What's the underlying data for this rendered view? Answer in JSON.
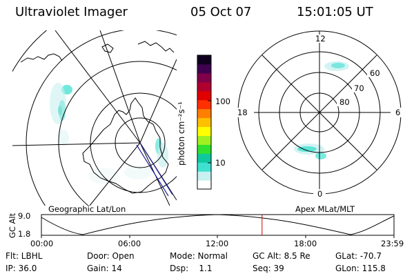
{
  "header": {
    "instrument": "Ultraviolet Imager",
    "date": "05 Oct 07",
    "time": "15:01:05 UT"
  },
  "left_panel": {
    "label": "Geographic Lat/Lon"
  },
  "right_panel": {
    "label": "Apex MLat/MLT",
    "mlt_labels": [
      "12",
      "6",
      "0",
      "18"
    ],
    "mlat_labels": [
      "60",
      "70",
      "80"
    ]
  },
  "colorbar": {
    "unit_label": "photon cm⁻²s⁻¹",
    "ticks": [
      "100",
      "10"
    ],
    "colors": [
      "#ffffff",
      "#c8f0f0",
      "#40e0d0",
      "#10c8a0",
      "#30e030",
      "#a0f020",
      "#ffff00",
      "#ffc000",
      "#ff8000",
      "#ff3000",
      "#e00000",
      "#b00030",
      "#80004a",
      "#400050",
      "#100020"
    ]
  },
  "altitude_plot": {
    "ylabel": "GC Alt",
    "yticks": [
      "9.0",
      "1.8"
    ],
    "xticks": [
      "00:00",
      "06:00",
      "12:00",
      "18:00",
      "23:59"
    ],
    "marker_hour": 15.02,
    "marker_color": "#cc0000"
  },
  "info": {
    "flt": "Flt: LBHL",
    "ip": "IP: 36.0",
    "door": "Door: Open",
    "gain": "Gain: 14",
    "mode": "Mode: Normal",
    "dsp": "Dsp:    1.1",
    "gcalt": "GC Alt: 8.5 Re",
    "seq": "Seq: 39",
    "glat": "GLat: -70.7",
    "glon": "GLon: 115.8"
  }
}
